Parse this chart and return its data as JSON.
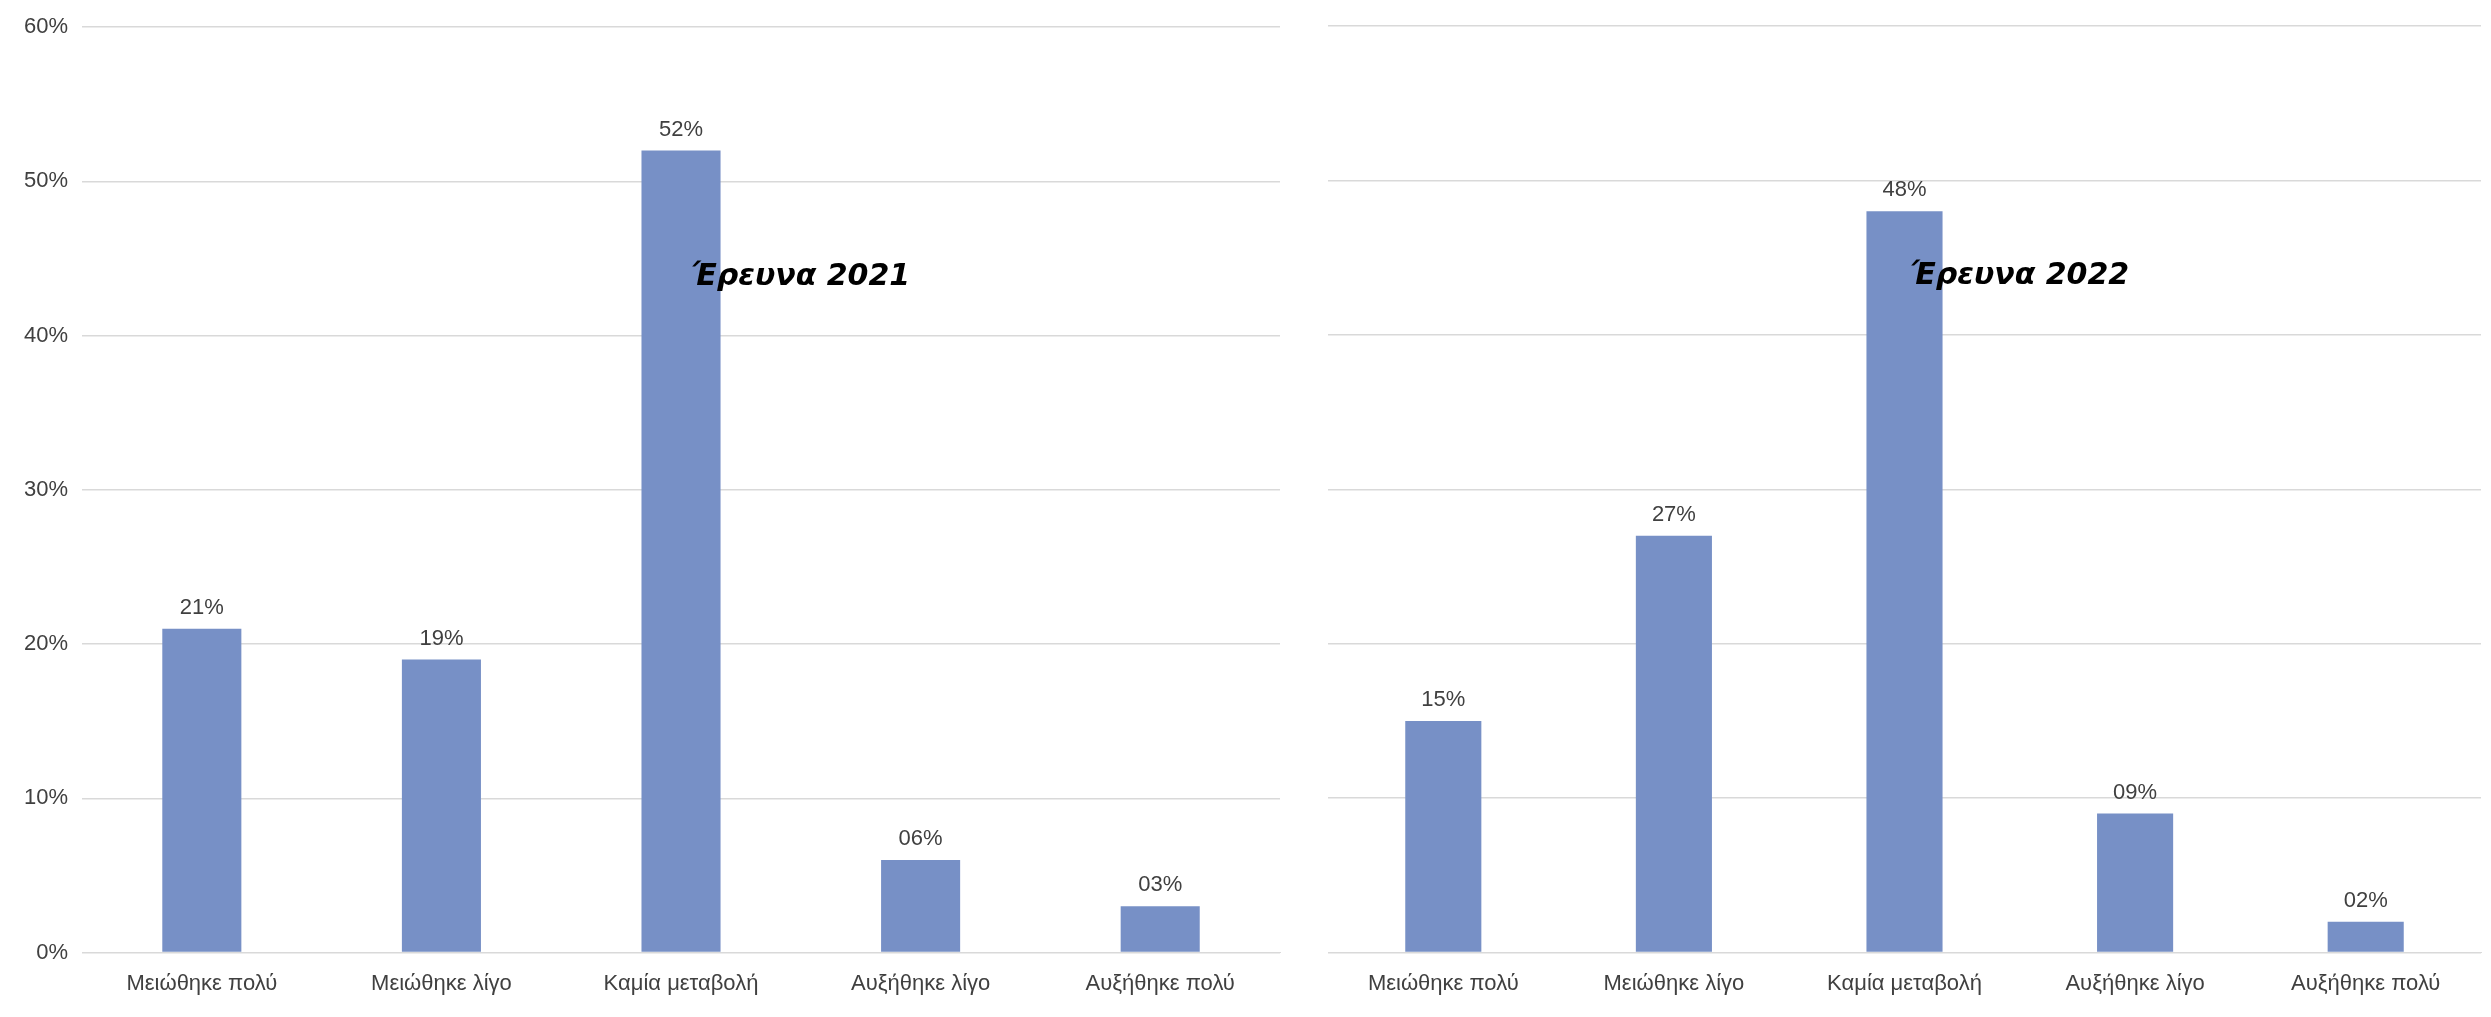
{
  "chart_data": [
    {
      "type": "bar",
      "categories": [
        "Μειώθηκε πολύ",
        "Μειώθηκε λίγο",
        "Καμία μεταβολή",
        "Αυξήθηκε λίγο",
        "Αυξήθηκε πολύ"
      ],
      "values": [
        21,
        19,
        52,
        6,
        3
      ],
      "value_labels": [
        "21%",
        "19%",
        "52%",
        "06%",
        "03%"
      ],
      "color": "#7790c6",
      "ylim": [
        0,
        60
      ],
      "yticks": [
        {
          "value": 0,
          "label": "0%"
        },
        {
          "value": 10,
          "label": "10%"
        },
        {
          "value": 20,
          "label": "20%"
        },
        {
          "value": 30,
          "label": "30%"
        },
        {
          "value": 40,
          "label": "40%"
        },
        {
          "value": 50,
          "label": "50%"
        },
        {
          "value": 60,
          "label": "60%"
        }
      ],
      "grid": "y",
      "legend": false,
      "annotations": [
        "Έρευνα 2021"
      ]
    },
    {
      "type": "bar",
      "categories": [
        "Μειώθηκε πολύ",
        "Μειώθηκε λίγο",
        "Καμία μεταβολή",
        "Αυξήθηκε λίγο",
        "Αυξήθηκε πολύ"
      ],
      "values": [
        15,
        27,
        48,
        9,
        2
      ],
      "value_labels": [
        "15%",
        "27%",
        "48%",
        "09%",
        "02%"
      ],
      "color": "#7790c6",
      "ylim": [
        0,
        60
      ],
      "yticks": [
        {
          "value": 0,
          "label": null
        },
        {
          "value": 10,
          "label": null
        },
        {
          "value": 20,
          "label": null
        },
        {
          "value": 30,
          "label": null
        },
        {
          "value": 40,
          "label": null
        },
        {
          "value": 50,
          "label": null
        },
        {
          "value": 60,
          "label": null
        }
      ],
      "grid": "y",
      "legend": false,
      "tick_labels": "x",
      "annotations": [
        "Έρευνα 2022"
      ]
    }
  ]
}
